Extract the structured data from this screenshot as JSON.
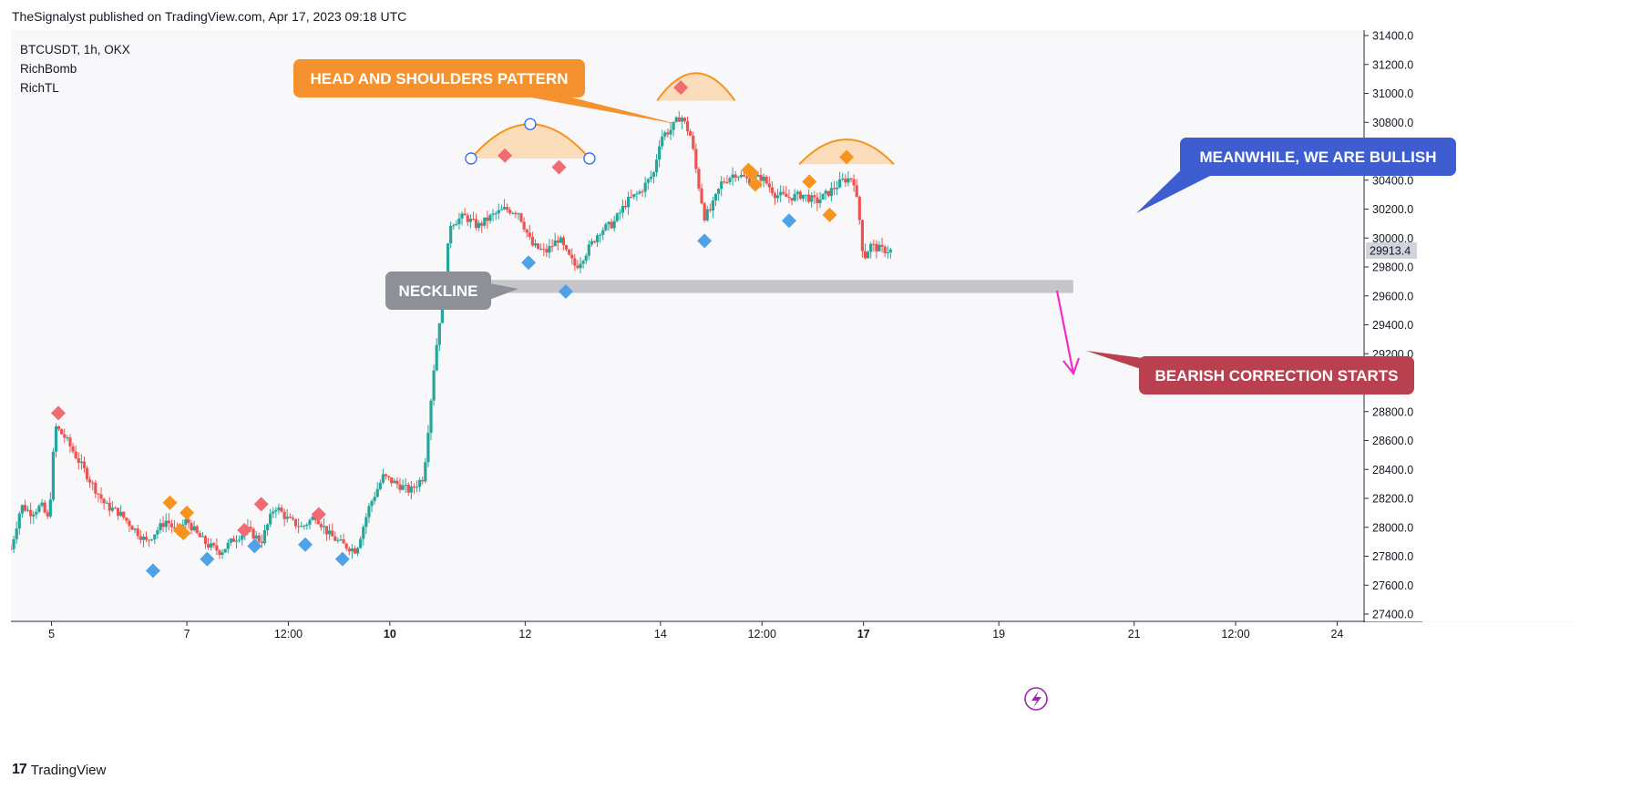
{
  "publisher_line": "TheSignalyst published on TradingView.com, Apr 17, 2023 09:18 UTC",
  "symbol_info": [
    "BTCUSDT, 1h, OKX",
    "RichBomb",
    "RichTL"
  ],
  "footer": {
    "logo": "17",
    "brand": "TradingView"
  },
  "colors": {
    "up": "#26a69a",
    "down": "#ef5350",
    "orange": "#f7931a",
    "neckline_box": "#c4c6cc",
    "callout_orange": "#f5922f",
    "callout_gray": "#8d9097",
    "callout_blue": "#3d5dd0",
    "callout_red": "#b8404f",
    "arrow_pink": "#f02dc8",
    "marker_red": "#f06b72",
    "marker_blue": "#4fa2e8",
    "marker_orange": "#f7941d",
    "dome_fill": "#fbd9b5"
  },
  "annotations": {
    "head_shoulders": "HEAD AND SHOULDERS PATTERN",
    "neckline": "NECKLINE",
    "bullish": "MEANWHILE, WE ARE BULLISH",
    "bearish": "BEARISH CORRECTION STARTS"
  },
  "icons": [
    "lightning-icon",
    "tradingview-logo-icon"
  ],
  "chart_data": {
    "type": "candlestick",
    "symbol": "BTCUSDT",
    "interval": "1h",
    "exchange": "OKX",
    "y_axis": {
      "ticks": [
        27400,
        27600,
        27800,
        28000,
        28200,
        28400,
        28600,
        28800,
        29000,
        29200,
        29400,
        29600,
        29800,
        30000,
        30200,
        30400,
        30600,
        30800,
        31000,
        31200,
        31400
      ],
      "tick_labels": [
        "27400.0",
        "27600.0",
        "27800.0",
        "28000.0",
        "28200.0",
        "28400.0",
        "28600.0",
        "28800.0",
        "29000.0",
        "29200.0",
        "29400.0",
        "29600.0",
        "29800.0",
        "30000.0",
        "30200.0",
        "30400.0",
        "30600.0",
        "30800.0",
        "31000.0",
        "31200.0",
        "31400.0"
      ],
      "range": [
        27350,
        31450
      ],
      "position": "right"
    },
    "x_axis": {
      "range_days": [
        4.4,
        24.6
      ],
      "ticks": [
        {
          "day": 5,
          "label": "5",
          "bold": false
        },
        {
          "day": 7,
          "label": "7",
          "bold": false
        },
        {
          "day": 8.5,
          "label": "12:00",
          "bold": false
        },
        {
          "day": 10,
          "label": "10",
          "bold": true
        },
        {
          "day": 12,
          "label": "12",
          "bold": false
        },
        {
          "day": 14,
          "label": "14",
          "bold": false
        },
        {
          "day": 15.5,
          "label": "12:00",
          "bold": false
        },
        {
          "day": 17,
          "label": "17",
          "bold": true
        },
        {
          "day": 19,
          "label": "19",
          "bold": false
        },
        {
          "day": 21,
          "label": "21",
          "bold": false
        },
        {
          "day": 22.5,
          "label": "12:00",
          "bold": false
        },
        {
          "day": 24,
          "label": "24",
          "bold": false
        }
      ]
    },
    "last_price": 29913.4,
    "last_price_label": "29913.4",
    "path_start_day": 4.4,
    "path_end_day": 17.4,
    "price_path": [
      [
        4.4,
        27850
      ],
      [
        4.55,
        28150
      ],
      [
        4.7,
        28100
      ],
      [
        4.85,
        28150
      ],
      [
        4.95,
        28050
      ],
      [
        5.0,
        28300
      ],
      [
        5.05,
        28700
      ],
      [
        5.2,
        28620
      ],
      [
        5.35,
        28500
      ],
      [
        5.6,
        28300
      ],
      [
        5.8,
        28150
      ],
      [
        6.0,
        28100
      ],
      [
        6.2,
        28000
      ],
      [
        6.4,
        27900
      ],
      [
        6.5,
        27950
      ],
      [
        6.7,
        28050
      ],
      [
        6.85,
        27960
      ],
      [
        7.0,
        28050
      ],
      [
        7.15,
        27950
      ],
      [
        7.3,
        27880
      ],
      [
        7.5,
        27830
      ],
      [
        7.7,
        27920
      ],
      [
        7.9,
        27980
      ],
      [
        8.1,
        27900
      ],
      [
        8.3,
        28150
      ],
      [
        8.5,
        28050
      ],
      [
        8.7,
        28000
      ],
      [
        8.9,
        28080
      ],
      [
        9.1,
        27950
      ],
      [
        9.3,
        27880
      ],
      [
        9.5,
        27840
      ],
      [
        9.7,
        28150
      ],
      [
        9.9,
        28350
      ],
      [
        10.1,
        28300
      ],
      [
        10.3,
        28250
      ],
      [
        10.5,
        28350
      ],
      [
        10.65,
        29100
      ],
      [
        10.75,
        29500
      ],
      [
        10.9,
        30100
      ],
      [
        11.1,
        30150
      ],
      [
        11.3,
        30080
      ],
      [
        11.5,
        30150
      ],
      [
        11.7,
        30200
      ],
      [
        11.9,
        30180
      ],
      [
        12.1,
        29950
      ],
      [
        12.3,
        29900
      ],
      [
        12.5,
        30000
      ],
      [
        12.6,
        29900
      ],
      [
        12.75,
        29800
      ],
      [
        12.9,
        29900
      ],
      [
        13.1,
        30050
      ],
      [
        13.3,
        30100
      ],
      [
        13.5,
        30250
      ],
      [
        13.7,
        30320
      ],
      [
        13.9,
        30450
      ],
      [
        14.0,
        30700
      ],
      [
        14.15,
        30750
      ],
      [
        14.3,
        30850
      ],
      [
        14.45,
        30700
      ],
      [
        14.55,
        30400
      ],
      [
        14.65,
        30150
      ],
      [
        14.75,
        30200
      ],
      [
        14.9,
        30380
      ],
      [
        15.1,
        30450
      ],
      [
        15.3,
        30400
      ],
      [
        15.5,
        30420
      ],
      [
        15.7,
        30300
      ],
      [
        15.9,
        30280
      ],
      [
        16.1,
        30300
      ],
      [
        16.3,
        30250
      ],
      [
        16.5,
        30320
      ],
      [
        16.7,
        30400
      ],
      [
        16.85,
        30420
      ],
      [
        16.95,
        30100
      ],
      [
        17.0,
        29850
      ],
      [
        17.1,
        29950
      ],
      [
        17.25,
        29920
      ],
      [
        17.4,
        29913
      ]
    ],
    "markers": [
      {
        "color": "red",
        "day": 5.1,
        "price": 28790
      },
      {
        "color": "blue",
        "day": 6.5,
        "price": 27700
      },
      {
        "color": "orange",
        "day": 6.75,
        "price": 28170
      },
      {
        "color": "orange",
        "day": 6.9,
        "price": 27980
      },
      {
        "color": "orange",
        "day": 6.95,
        "price": 27960
      },
      {
        "color": "orange",
        "day": 7.0,
        "price": 28100
      },
      {
        "color": "blue",
        "day": 7.3,
        "price": 27780
      },
      {
        "color": "red",
        "day": 7.85,
        "price": 27980
      },
      {
        "color": "blue",
        "day": 8.0,
        "price": 27870
      },
      {
        "color": "red",
        "day": 8.1,
        "price": 28160
      },
      {
        "color": "blue",
        "day": 8.75,
        "price": 27880
      },
      {
        "color": "red",
        "day": 8.95,
        "price": 28090
      },
      {
        "color": "blue",
        "day": 9.3,
        "price": 27780
      },
      {
        "color": "red",
        "day": 11.7,
        "price": 30570
      },
      {
        "color": "blue",
        "day": 12.05,
        "price": 29830
      },
      {
        "color": "red",
        "day": 12.5,
        "price": 30490
      },
      {
        "color": "blue",
        "day": 12.6,
        "price": 29630
      },
      {
        "color": "red",
        "day": 14.3,
        "price": 31040
      },
      {
        "color": "blue",
        "day": 14.65,
        "price": 29980
      },
      {
        "color": "orange",
        "day": 15.3,
        "price": 30470
      },
      {
        "color": "orange",
        "day": 15.35,
        "price": 30450
      },
      {
        "color": "orange",
        "day": 15.4,
        "price": 30370
      },
      {
        "color": "blue",
        "day": 15.9,
        "price": 30120
      },
      {
        "color": "orange",
        "day": 16.2,
        "price": 30390
      },
      {
        "color": "orange",
        "day": 16.5,
        "price": 30160
      },
      {
        "color": "orange",
        "day": 16.75,
        "price": 30560
      }
    ],
    "neckline_zone": {
      "day_start": 10.6,
      "day_end": 20.1,
      "price_low": 29620,
      "price_high": 29710
    },
    "shoulder_domes": [
      {
        "day_start": 11.2,
        "day_end": 12.95,
        "base_price": 30550,
        "peak_price": 30800
      },
      {
        "day_start": 13.95,
        "day_end": 15.1,
        "base_price": 30950,
        "peak_price": 31150
      },
      {
        "day_start": 16.05,
        "day_end": 17.45,
        "base_price": 30510,
        "peak_price": 30690
      }
    ]
  }
}
